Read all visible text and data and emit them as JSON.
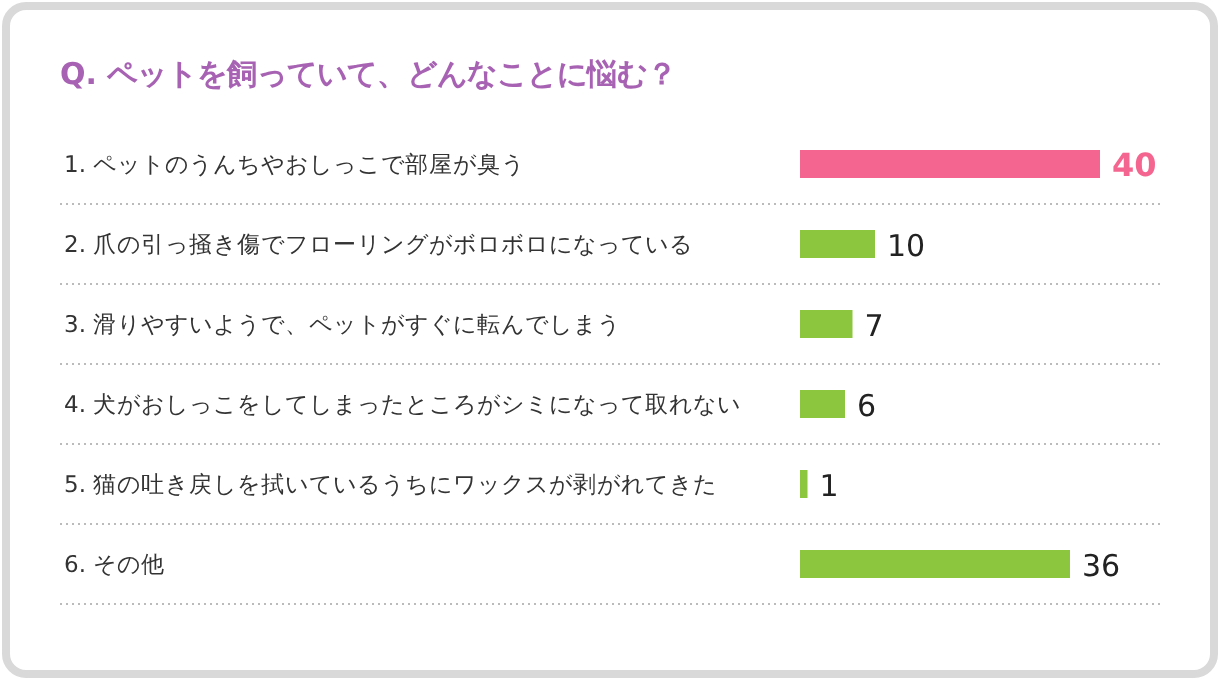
{
  "chart_data": {
    "type": "bar",
    "orientation": "horizontal",
    "title": "Q. ペットを飼っていて、どんなことに悩む？",
    "categories": [
      "1. ペットのうんちやおしっこで部屋が臭う",
      "2. 爪の引っ掻き傷でフローリングがボロボロになっている",
      "3. 滑りやすいようで、ペットがすぐに転んでしまう",
      "4. 犬がおしっこをしてしまったところがシミになって取れない",
      "5. 猫の吐き戻しを拭いているうちにワックスが剥がれてきた",
      "6. その他"
    ],
    "values": [
      40,
      10,
      7,
      6,
      1,
      36
    ],
    "colors": [
      "#f4668f",
      "#8cc63e",
      "#8cc63e",
      "#8cc63e",
      "#8cc63e",
      "#8cc63e"
    ],
    "data_labels": true
  }
}
